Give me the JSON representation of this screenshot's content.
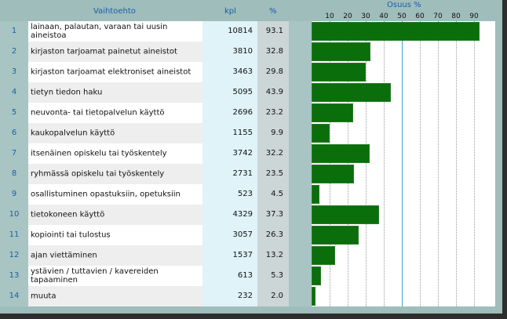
{
  "header": {
    "option": "Vaihtoehto",
    "count": "kpl",
    "percent": "%",
    "share": "Osuus %"
  },
  "chart_data": {
    "type": "bar",
    "title": "Osuus %",
    "xlim": [
      0,
      100
    ],
    "ticks": [
      "10",
      "20",
      "30",
      "40",
      "50",
      "60",
      "70",
      "80",
      "90"
    ],
    "grid": true,
    "rows": [
      {
        "n": "1",
        "label": "lainaan, palautan, varaan tai uusin aineistoa",
        "kpl": "10814",
        "pct": "93.1",
        "value": 93.1
      },
      {
        "n": "2",
        "label": "kirjaston tarjoamat painetut aineistot",
        "kpl": "3810",
        "pct": "32.8",
        "value": 32.8
      },
      {
        "n": "3",
        "label": "kirjaston tarjoamat elektroniset aineistot",
        "kpl": "3463",
        "pct": "29.8",
        "value": 29.8
      },
      {
        "n": "4",
        "label": "tietyn tiedon haku",
        "kpl": "5095",
        "pct": "43.9",
        "value": 43.9
      },
      {
        "n": "5",
        "label": "neuvonta- tai tietopalvelun käyttö",
        "kpl": "2696",
        "pct": "23.2",
        "value": 23.2
      },
      {
        "n": "6",
        "label": "kaukopalvelun käyttö",
        "kpl": "1155",
        "pct": "9.9",
        "value": 9.9
      },
      {
        "n": "7",
        "label": "itsenäinen opiskelu tai työskentely",
        "kpl": "3742",
        "pct": "32.2",
        "value": 32.2
      },
      {
        "n": "8",
        "label": "ryhmässä opiskelu tai työskentely",
        "kpl": "2731",
        "pct": "23.5",
        "value": 23.5
      },
      {
        "n": "9",
        "label": "osallistuminen opastuksiin, opetuksiin",
        "kpl": "523",
        "pct": "4.5",
        "value": 4.5
      },
      {
        "n": "10",
        "label": "tietokoneen käyttö",
        "kpl": "4329",
        "pct": "37.3",
        "value": 37.3
      },
      {
        "n": "11",
        "label": "kopiointi tai tulostus",
        "kpl": "3057",
        "pct": "26.3",
        "value": 26.3
      },
      {
        "n": "12",
        "label": "ajan viettäminen",
        "kpl": "1537",
        "pct": "13.2",
        "value": 13.2
      },
      {
        "n": "13",
        "label": "ystävien / tuttavien / kavereiden tapaaminen",
        "kpl": "613",
        "pct": "5.3",
        "value": 5.3
      },
      {
        "n": "14",
        "label": "muuta",
        "kpl": "232",
        "pct": "2.0",
        "value": 2.0
      }
    ]
  }
}
